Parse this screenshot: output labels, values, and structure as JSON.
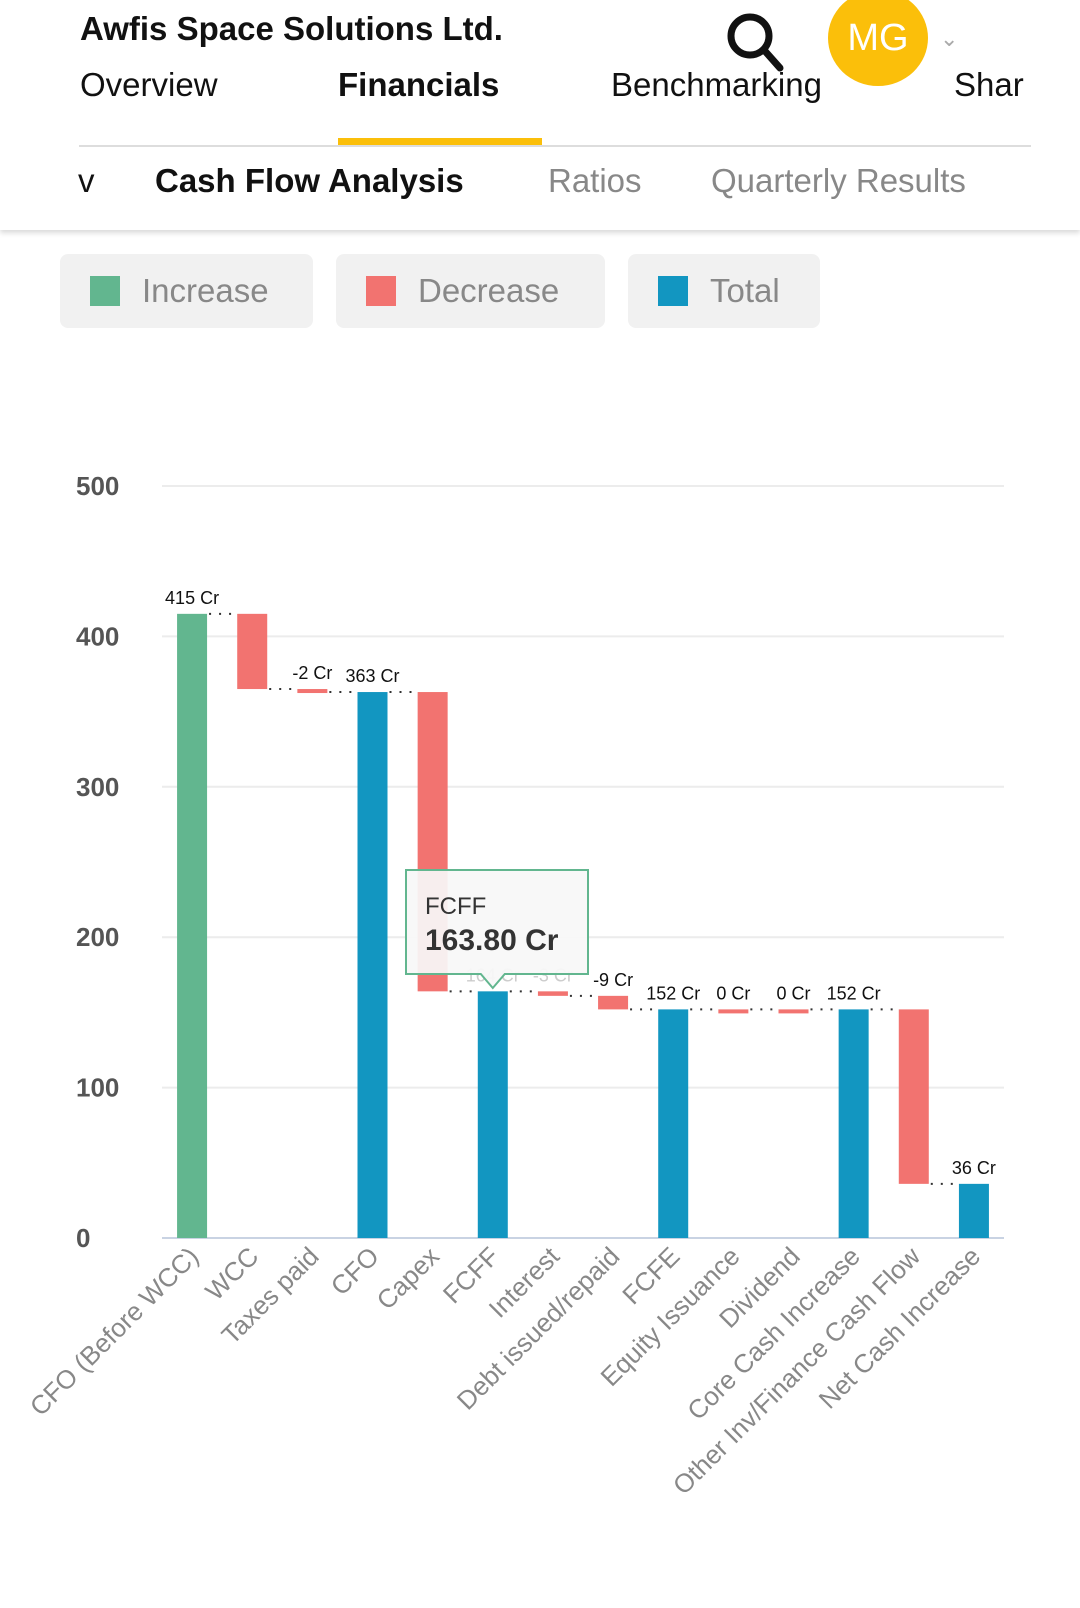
{
  "header": {
    "company": "Awfis Space Solutions Ltd.",
    "avatar_initials": "MG",
    "search_icon": "search-icon",
    "dropdown_icon": "chevron-down-icon",
    "tabs": [
      {
        "label": "Overview"
      },
      {
        "label": "Financials",
        "active": true
      },
      {
        "label": "Benchmarking"
      },
      {
        "label": "Shar"
      }
    ]
  },
  "subtabs": [
    {
      "label": "v"
    },
    {
      "label": "Cash Flow Analysis",
      "active": true
    },
    {
      "label": "Ratios"
    },
    {
      "label": "Quarterly Results"
    }
  ],
  "legend": [
    {
      "label": "Increase",
      "color": "#62b68f"
    },
    {
      "label": "Decrease",
      "color": "#f27370"
    },
    {
      "label": "Total",
      "color": "#1296c1"
    }
  ],
  "tooltip": {
    "category": "FCFF",
    "value": "163.80 Cr",
    "border_color": "#62b68f"
  },
  "chart_data": {
    "type": "waterfall",
    "ylim": [
      0,
      500
    ],
    "yticks": [
      "0",
      "100",
      "200",
      "300",
      "400",
      "500"
    ],
    "grid": true,
    "categories": [
      "CFO (Before WCC)",
      "WCC",
      "Taxes paid",
      "CFO",
      "Capex",
      "FCFF",
      "Interest",
      "Debt issued/repaid",
      "FCFE",
      "Equity Issuance",
      "Dividend",
      "Core Cash Increase",
      "Other Inv/Finance Cash Flow",
      "Net Cash Increase"
    ],
    "kinds": [
      "increase",
      "decrease",
      "decrease",
      "total",
      "decrease",
      "total",
      "decrease",
      "decrease",
      "total",
      "decrease",
      "decrease",
      "total",
      "decrease",
      "total"
    ],
    "values": [
      415,
      -50,
      -2,
      363,
      -199,
      164,
      -3,
      -9,
      152,
      0,
      0,
      152,
      -116,
      36
    ],
    "data_labels": [
      "415 Cr",
      null,
      "-2 Cr",
      "363 Cr",
      null,
      "164 Cr",
      "-3 Cr",
      "-9 Cr",
      "152 Cr",
      "0 Cr",
      "0 Cr",
      "152 Cr",
      null,
      "36 Cr"
    ]
  }
}
